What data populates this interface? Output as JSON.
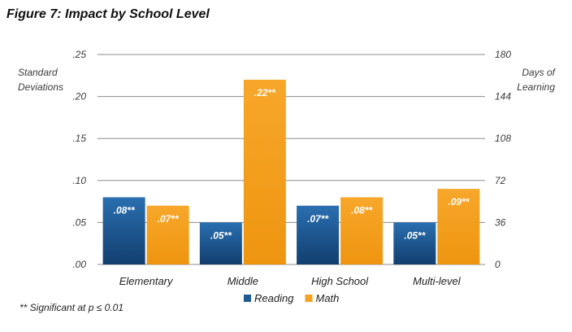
{
  "chart_data": {
    "type": "bar",
    "title": "Figure 7: Impact by School Level",
    "ylabel": "Standard Deviations",
    "y2label": "Days of Learning",
    "ylim": [
      0,
      0.25
    ],
    "y2lim": [
      0,
      180
    ],
    "yticks": [
      ".00",
      ".05",
      ".10",
      ".15",
      ".20",
      ".25"
    ],
    "y2ticks": [
      "0",
      "36",
      "72",
      "108",
      "144",
      "180"
    ],
    "categories": [
      "Elementary",
      "Middle",
      "High School",
      "Multi-level"
    ],
    "series": [
      {
        "name": "Reading",
        "color": "#1f5a93",
        "values": [
          0.08,
          0.05,
          0.07,
          0.05
        ],
        "labels": [
          ".08**",
          ".05**",
          ".07**",
          ".05**"
        ]
      },
      {
        "name": "Math",
        "color": "#f5a121",
        "values": [
          0.07,
          0.22,
          0.08,
          0.09
        ],
        "labels": [
          ".07**",
          ".22**",
          ".08**",
          ".09**"
        ]
      }
    ],
    "footnote": "** Significant at p ≤ 0.01"
  }
}
